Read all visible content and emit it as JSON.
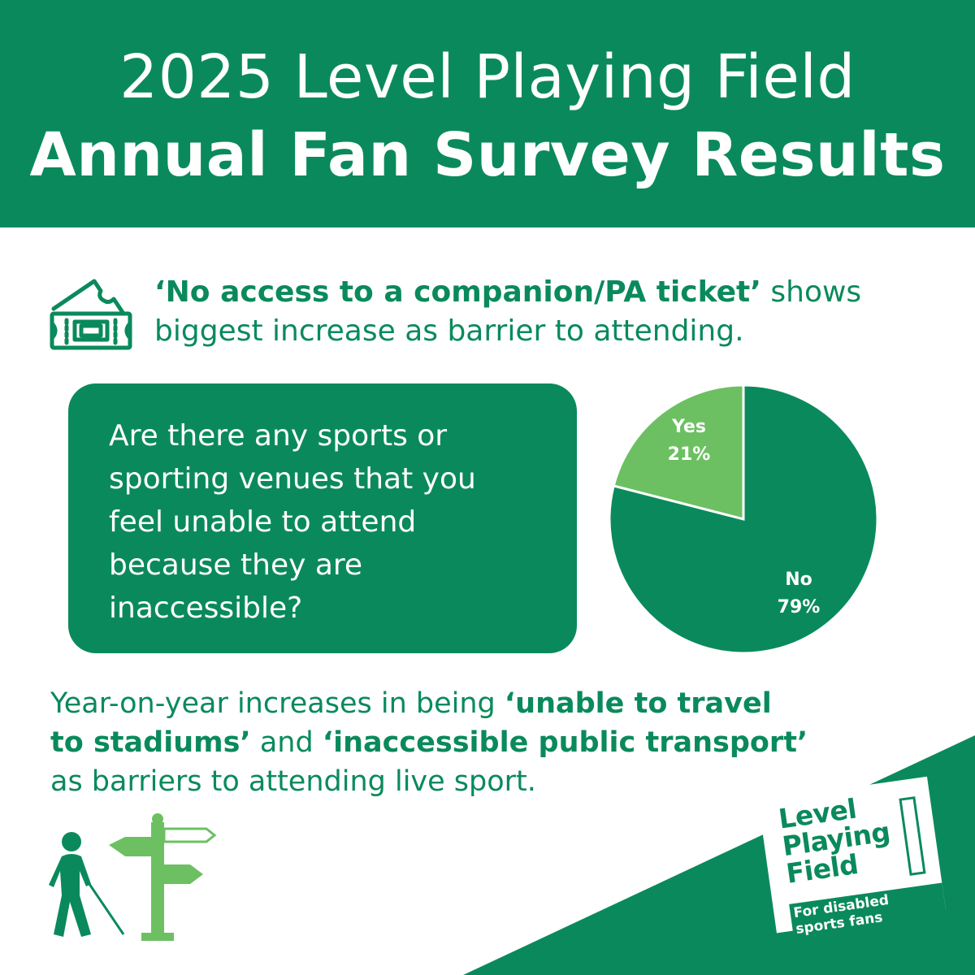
{
  "header": {
    "title_line1": "2025 Level Playing Field",
    "title_line2": "Annual Fan Survey Results"
  },
  "finding1": {
    "bold": "‘No access to a companion/PA ticket’",
    "rest_a": " shows",
    "rest_b": "biggest increase as barrier to attending.",
    "icon": "ticket-icon"
  },
  "question": {
    "line1": "Are there any sports or",
    "line2": "sporting venues that you",
    "line3": "feel unable to attend",
    "line4": "because they are",
    "line5": "inaccessible?"
  },
  "chart_data": {
    "type": "pie",
    "categories": [
      "Yes",
      "No"
    ],
    "values": [
      21,
      79
    ],
    "labels": [
      "21%",
      "79%"
    ],
    "colors": [
      "#6cc062",
      "#0a8a5c"
    ]
  },
  "finding2": {
    "text_a": "Year-on-year increases in being ",
    "bold_a": "‘unable to travel",
    "bold_b": "to stadiums’",
    "text_b": " and ",
    "bold_c": "‘inaccessible public transport’",
    "text_c": "as barriers to attending live sport."
  },
  "icons": {
    "walker": "person-with-cane-icon",
    "signpost": "signpost-icon"
  },
  "logo": {
    "line1": "Level",
    "line2": "Playing",
    "line3": "Field",
    "tagline": "For disabled sports fans"
  },
  "colors": {
    "brand_green": "#0a8a5c",
    "light_green": "#6cc062",
    "background": "#ffffff"
  }
}
